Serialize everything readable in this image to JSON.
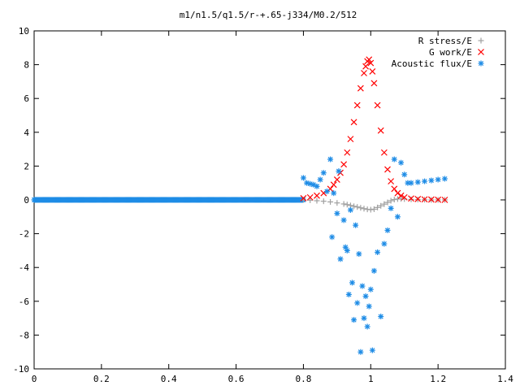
{
  "chart_data": {
    "type": "scatter",
    "title": "m1/n1.5/q1.5/r-+.65-j334/M0.2/512",
    "xlabel": "",
    "ylabel": "",
    "xlim": [
      0,
      1.4
    ],
    "ylim": [
      -10,
      10
    ],
    "x_ticks": [
      "0",
      "0.2",
      "0.4",
      "0.6",
      "0.8",
      "1",
      "1.2",
      "1.4"
    ],
    "y_ticks": [
      "10",
      "8",
      "6",
      "4",
      "2",
      "0",
      "-2",
      "-4",
      "-6",
      "-8",
      "-10"
    ],
    "grid": false,
    "legend_position": "top-right",
    "series": [
      {
        "name": "R stress/E",
        "marker": "plus",
        "color": "#a0a0a0",
        "x": [
          0.8,
          0.82,
          0.84,
          0.86,
          0.88,
          0.9,
          0.92,
          0.93,
          0.94,
          0.95,
          0.96,
          0.97,
          0.98,
          0.99,
          1.0,
          1.01,
          1.02,
          1.03,
          1.04,
          1.05,
          1.06,
          1.07,
          1.08,
          1.09,
          1.1,
          1.12,
          1.14,
          1.16,
          1.18,
          1.2,
          1.22
        ],
        "y": [
          0.0,
          -0.02,
          -0.05,
          -0.08,
          -0.12,
          -0.18,
          -0.24,
          -0.28,
          -0.33,
          -0.38,
          -0.42,
          -0.47,
          -0.52,
          -0.56,
          -0.58,
          -0.55,
          -0.45,
          -0.35,
          -0.25,
          -0.15,
          -0.05,
          0.02,
          0.05,
          0.06,
          0.05,
          0.03,
          0.02,
          0.01,
          0.0,
          0.0,
          0.0
        ]
      },
      {
        "name": "G work/E",
        "marker": "cross",
        "color": "#ff0000",
        "x": [
          0.8,
          0.82,
          0.84,
          0.86,
          0.88,
          0.89,
          0.9,
          0.91,
          0.92,
          0.93,
          0.94,
          0.95,
          0.96,
          0.97,
          0.98,
          0.985,
          0.99,
          0.995,
          1.0,
          1.005,
          1.01,
          1.02,
          1.03,
          1.04,
          1.05,
          1.06,
          1.07,
          1.08,
          1.09,
          1.1,
          1.12,
          1.14,
          1.16,
          1.18,
          1.2,
          1.22
        ],
        "y": [
          0.1,
          0.15,
          0.25,
          0.4,
          0.65,
          0.9,
          1.2,
          1.6,
          2.1,
          2.8,
          3.6,
          4.6,
          5.6,
          6.6,
          7.5,
          7.9,
          8.2,
          8.3,
          8.1,
          7.6,
          6.9,
          5.6,
          4.1,
          2.8,
          1.8,
          1.1,
          0.65,
          0.4,
          0.25,
          0.15,
          0.08,
          0.05,
          0.03,
          0.02,
          0.01,
          0.0
        ]
      },
      {
        "name": "Acoustic flux/E",
        "marker": "star",
        "color": "#1e8ce6",
        "x": [
          0.8,
          0.81,
          0.82,
          0.83,
          0.84,
          0.85,
          0.86,
          0.87,
          0.88,
          0.885,
          0.89,
          0.9,
          0.905,
          0.91,
          0.92,
          0.925,
          0.93,
          0.935,
          0.94,
          0.945,
          0.95,
          0.955,
          0.96,
          0.965,
          0.97,
          0.975,
          0.98,
          0.985,
          0.99,
          0.995,
          1.0,
          1.005,
          1.01,
          1.02,
          1.03,
          1.04,
          1.05,
          1.06,
          1.07,
          1.08,
          1.09,
          1.1,
          1.11,
          1.12,
          1.14,
          1.16,
          1.18,
          1.2,
          1.22
        ],
        "y": [
          1.3,
          1.0,
          0.95,
          0.9,
          0.8,
          1.2,
          1.6,
          0.5,
          2.4,
          -2.2,
          0.4,
          -0.8,
          1.7,
          -3.5,
          -1.2,
          -2.8,
          -3.0,
          -5.6,
          -0.6,
          -4.9,
          -7.1,
          -1.5,
          -6.1,
          -3.2,
          -9.0,
          -5.1,
          -7.0,
          -5.7,
          -7.5,
          -6.3,
          -5.3,
          -8.9,
          -4.2,
          -3.1,
          -6.9,
          -2.6,
          -1.8,
          -0.5,
          2.4,
          -1.0,
          2.2,
          1.5,
          1.0,
          1.0,
          1.05,
          1.1,
          1.15,
          1.2,
          1.25
        ]
      }
    ]
  },
  "axis_base": {
    "x_baseline_value": 0
  }
}
